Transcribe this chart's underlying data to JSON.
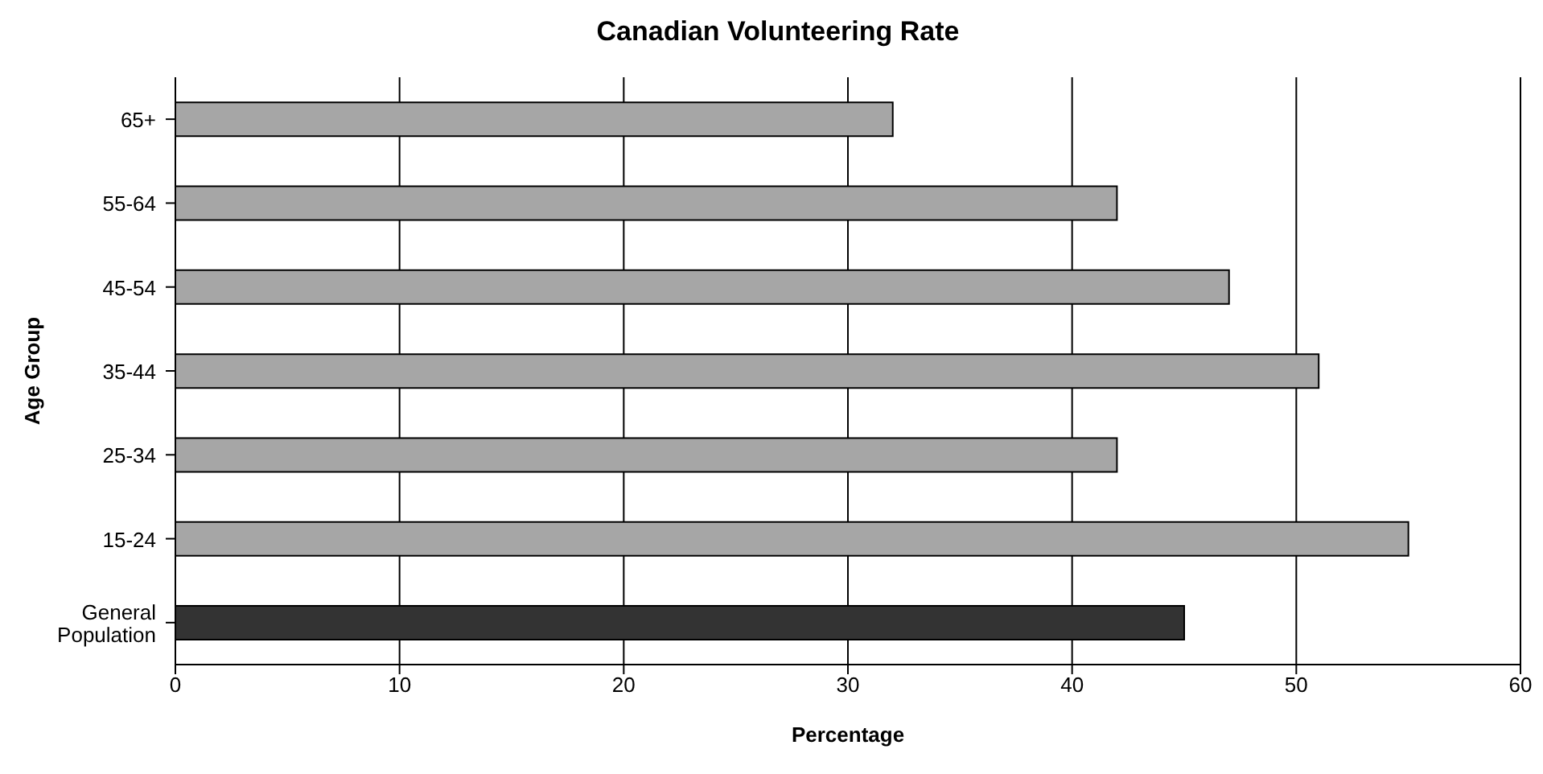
{
  "chart_data": {
    "type": "bar",
    "orientation": "horizontal",
    "title": "Canadian Volunteering Rate",
    "xlabel": "Percentage",
    "ylabel": "Age Group",
    "categories": [
      "65+",
      "55-64",
      "45-54",
      "35-44",
      "25-34",
      "15-24",
      "General Population"
    ],
    "values": [
      32,
      42,
      47,
      51,
      42,
      55,
      45
    ],
    "colors": [
      "#a6a6a6",
      "#a6a6a6",
      "#a6a6a6",
      "#a6a6a6",
      "#a6a6a6",
      "#a6a6a6",
      "#333333"
    ],
    "xlim": [
      0,
      60
    ],
    "xticks": [
      0,
      10,
      20,
      30,
      40,
      50,
      60
    ],
    "grid": "x",
    "legend": false
  }
}
